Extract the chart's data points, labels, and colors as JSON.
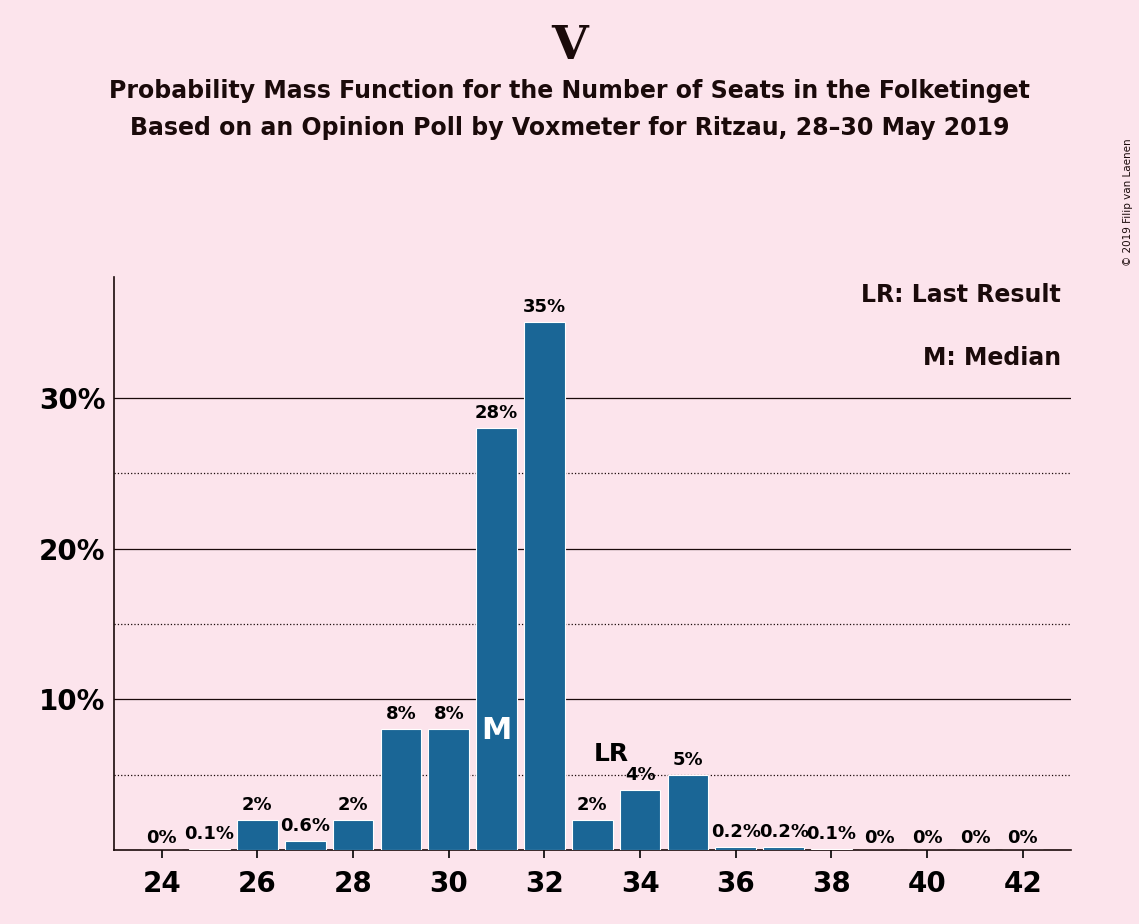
{
  "title_main": "V",
  "title_line1": "Probability Mass Function for the Number of Seats in the Folketinget",
  "title_line2": "Based on an Opinion Poll by Voxmeter for Ritzau, 28–30 May 2019",
  "copyright_text": "© 2019 Filip van Laenen",
  "legend_line1": "LR: Last Result",
  "legend_line2": "M: Median",
  "background_color": "#fce4ec",
  "bar_color": "#1a6696",
  "seats": [
    24,
    25,
    26,
    27,
    28,
    29,
    30,
    31,
    32,
    33,
    34,
    35,
    36,
    37,
    38,
    39,
    40,
    41,
    42
  ],
  "probabilities": [
    0.0,
    0.001,
    0.02,
    0.006,
    0.02,
    0.08,
    0.08,
    0.28,
    0.35,
    0.02,
    0.04,
    0.05,
    0.002,
    0.002,
    0.001,
    0.0,
    0.0,
    0.0,
    0.0
  ],
  "labels": [
    "0%",
    "0.1%",
    "2%",
    "0.6%",
    "2%",
    "8%",
    "8%",
    "28%",
    "35%",
    "2%",
    "4%",
    "5%",
    "0.2%",
    "0.2%",
    "0.1%",
    "0%",
    "0%",
    "0%",
    "0%"
  ],
  "median_seat": 31,
  "lr_seat": 34,
  "xlim": [
    23,
    43
  ],
  "ylim": [
    0,
    0.38
  ],
  "yticks_solid": [
    0.1,
    0.2,
    0.3
  ],
  "yticks_dotted": [
    0.05,
    0.15,
    0.25
  ],
  "ytick_labeled": [
    0.1,
    0.2,
    0.3
  ],
  "xticks": [
    24,
    26,
    28,
    30,
    32,
    34,
    36,
    38,
    40,
    42
  ],
  "title_fontsize": 34,
  "subtitle_fontsize": 17,
  "axis_fontsize": 20,
  "label_fontsize": 13,
  "legend_fontsize": 17,
  "bar_width": 0.85
}
